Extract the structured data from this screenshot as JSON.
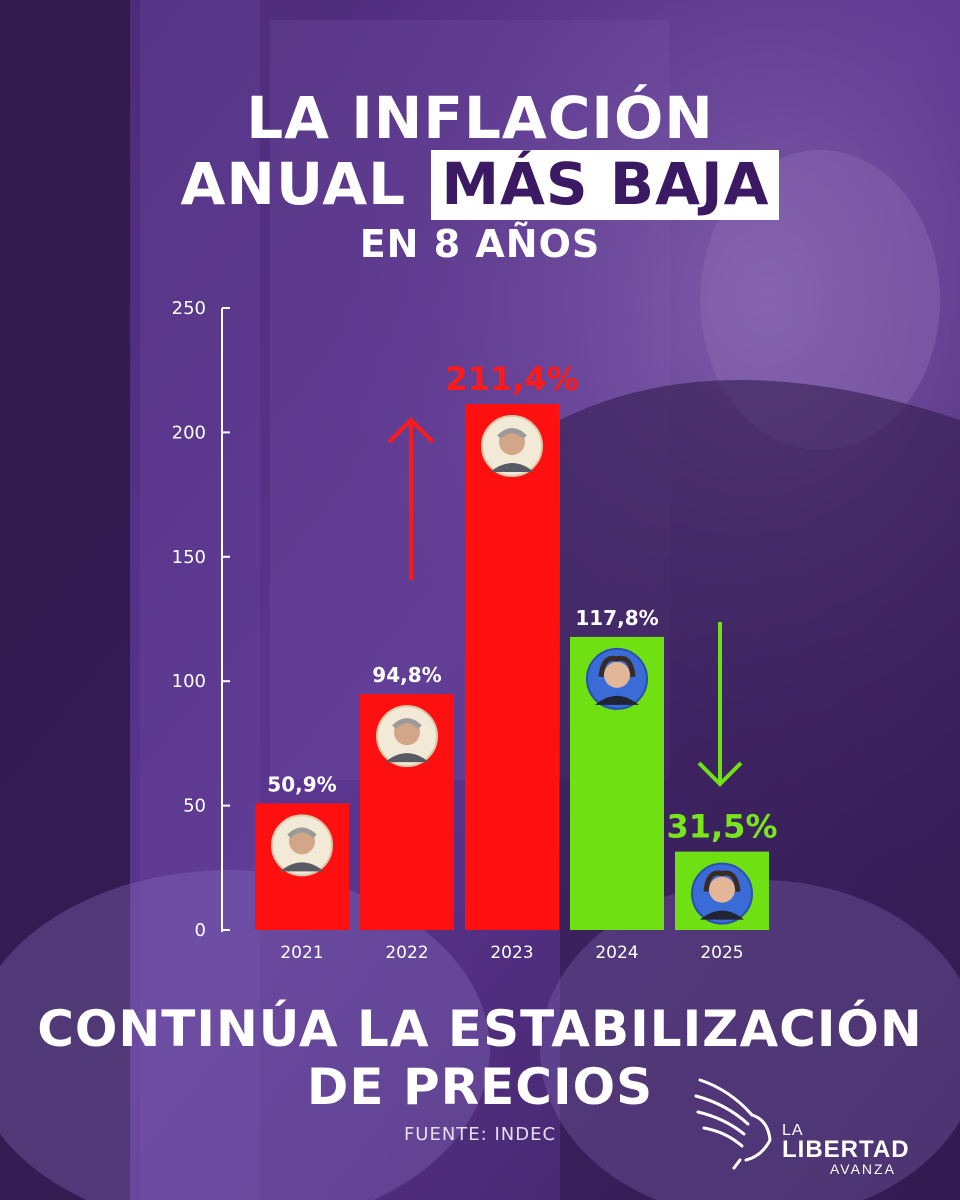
{
  "header": {
    "line1": "LA INFLACIÓN",
    "line2_plain": "ANUAL",
    "line2_highlight": "MÁS BAJA",
    "line3": "EN 8 AÑOS"
  },
  "footer": {
    "line1": "CONTINÚA LA ESTABILIZACIÓN",
    "line2": "DE PRECIOS",
    "source": "FUENTE: INDEC"
  },
  "logo": {
    "line1": "LA",
    "line2": "LIBERTAD",
    "line3": "AVANZA"
  },
  "colors": {
    "background": "#3a1f5c",
    "red": "#ff1010",
    "green": "#6fe011",
    "title_highlight_text": "#3b1a63"
  },
  "chart_data": {
    "type": "bar",
    "categories": [
      "2021",
      "2022",
      "2023",
      "2024",
      "2025"
    ],
    "values": [
      50.9,
      94.8,
      211.4,
      117.8,
      31.5
    ],
    "data_labels": [
      "50,9%",
      "94,8%",
      "211,4%",
      "117,8%",
      "31,5%"
    ],
    "bar_colors": [
      "#ff1010",
      "#ff1010",
      "#ff1010",
      "#6fe011",
      "#6fe011"
    ],
    "y_ticks": [
      0,
      50,
      100,
      150,
      200,
      250
    ],
    "ylim": [
      0,
      250
    ],
    "grid": false,
    "legend": "none",
    "annotations": [
      {
        "type": "arrow-up",
        "color": "#ff1010",
        "near": "2022"
      },
      {
        "type": "arrow-down",
        "color": "#6fe011",
        "near": "2025"
      }
    ],
    "portraits": [
      "person-a",
      "person-a",
      "person-a",
      "person-b",
      "person-b"
    ]
  }
}
